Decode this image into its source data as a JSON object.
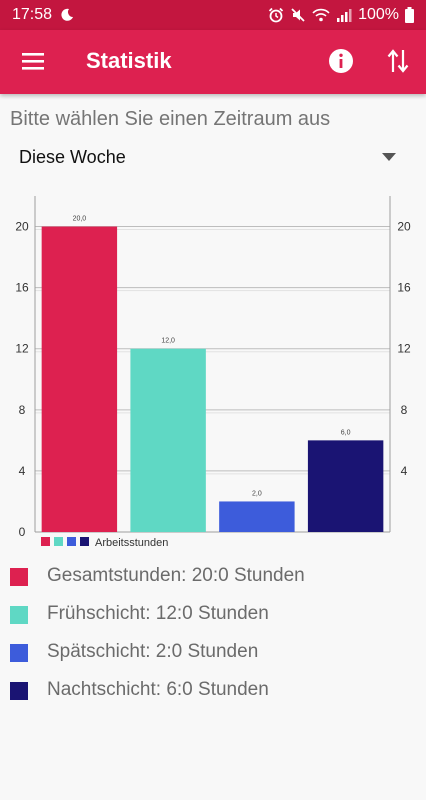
{
  "statusbar": {
    "time": "17:58",
    "battery": "100%"
  },
  "appbar": {
    "title": "Statistik"
  },
  "filter": {
    "prompt": "Bitte wählen Sie einen Zeitraum aus",
    "selected": "Diese Woche"
  },
  "chart_data": {
    "type": "bar",
    "categories": [
      "Gesamtstunden",
      "Frühschicht",
      "Spätschicht",
      "Nachtschicht"
    ],
    "values": [
      20.0,
      12.0,
      2.0,
      6.0
    ],
    "value_labels": [
      "20,0",
      "12,0",
      "2,0",
      "6,0"
    ],
    "colors": [
      "#dd2150",
      "#5fd8c4",
      "#3d5cdb",
      "#1a1473"
    ],
    "yticks": [
      0,
      4,
      8,
      12,
      16,
      20
    ],
    "ylim": [
      0,
      22
    ],
    "legend_label": "Arbeitsstunden",
    "grid": true,
    "legend_placement": "bottom-left"
  },
  "summary": [
    {
      "label": "Gesamtstunden: 20:0 Stunden",
      "color": "#dd2150"
    },
    {
      "label": "Frühschicht: 12:0 Stunden",
      "color": "#5fd8c4"
    },
    {
      "label": "Spätschicht: 2:0 Stunden",
      "color": "#3d5cdb"
    },
    {
      "label": "Nachtschicht: 6:0 Stunden",
      "color": "#1a1473"
    }
  ]
}
